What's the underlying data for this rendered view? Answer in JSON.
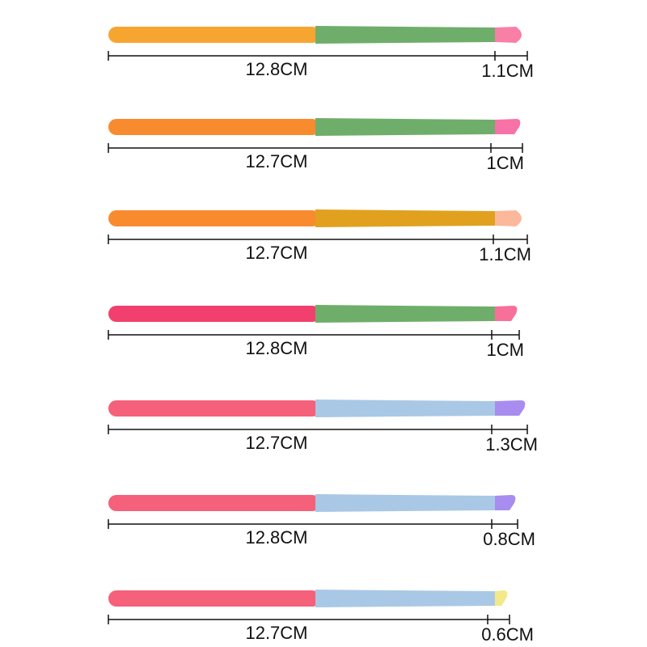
{
  "brushes": [
    {
      "handle_length": "12.8CM",
      "tip_length": "1.1CM"
    },
    {
      "handle_length": "12.7CM",
      "tip_length": "1CM"
    },
    {
      "handle_length": "12.7CM",
      "tip_length": "1.1CM"
    },
    {
      "handle_length": "12.8CM",
      "tip_length": "1CM"
    },
    {
      "handle_length": "12.7CM",
      "tip_length": "1.3CM"
    },
    {
      "handle_length": "12.8CM",
      "tip_length": "0.8CM"
    },
    {
      "handle_length": "12.7CM",
      "tip_length": "0.6CM"
    }
  ]
}
